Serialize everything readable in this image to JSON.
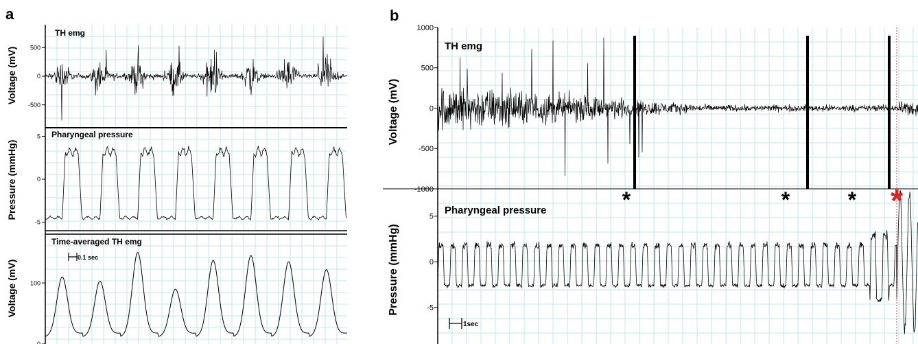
{
  "panel_labels": [
    "a",
    "b"
  ],
  "scalebars": {
    "a": "0.1 sec",
    "b": "1sec"
  },
  "event_markers": [
    "*",
    "*",
    "*",
    "*"
  ],
  "colors": {
    "trace": "#000000",
    "grid": "#bfe9ee",
    "marker_red": "#e02020",
    "background": "#ffffff"
  },
  "chart_data": [
    {
      "type": "line",
      "panel": "a",
      "title": "TH emg",
      "ylabel": "Voltage (mV)",
      "yticks": [
        "500",
        "0",
        "-500"
      ],
      "yticks_values": [
        500,
        0,
        -500
      ],
      "ylim": [
        -900,
        900
      ],
      "description_values": {
        "bursts": 8,
        "burst_peak_amplitude": 700,
        "baseline_noise": 80
      }
    },
    {
      "type": "line",
      "panel": "a",
      "title": "Pharyngeal pressure",
      "ylabel": "Pressure (mmHg)",
      "yticks": [
        "5",
        "0",
        "-5"
      ],
      "yticks_values": [
        5,
        0,
        -5
      ],
      "ylim": [
        -6,
        6
      ],
      "cycles": 8,
      "high_level": 3.2,
      "low_level": -4.5
    },
    {
      "type": "line",
      "panel": "a",
      "title": "Time-averaged TH emg",
      "ylabel": "Voltage (mV)",
      "yticks": [
        "100",
        "0"
      ],
      "yticks_values": [
        100,
        0
      ],
      "ylim": [
        0,
        180
      ],
      "peaks": [
        110,
        103,
        150,
        90,
        137,
        145,
        135,
        122
      ]
    },
    {
      "type": "line",
      "panel": "b",
      "title": "TH emg",
      "ylabel": "Voltage (mV)",
      "yticks": [
        "1000",
        "500",
        "0",
        "-500",
        "-1000"
      ],
      "yticks_values": [
        1000,
        500,
        0,
        -500,
        -1000
      ],
      "ylim": [
        -1000,
        1000
      ],
      "artifact_spikes_fraction_of_width": [
        0.41,
        0.77,
        0.94
      ]
    },
    {
      "type": "line",
      "panel": "b",
      "title": "Pharyngeal pressure",
      "ylabel": "Pressure (mmHg)",
      "yticks": [
        "5",
        "0",
        "-5"
      ],
      "yticks_values": [
        5,
        0,
        -5
      ],
      "ylim": [
        -9,
        8
      ],
      "cycles": 40,
      "high_level": 1.8,
      "low_level": -2.6
    }
  ]
}
